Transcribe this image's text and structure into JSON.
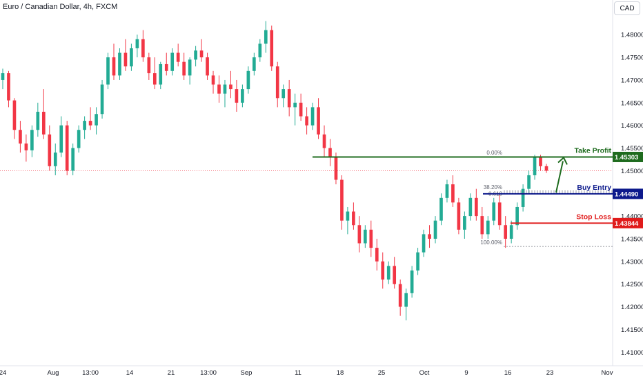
{
  "header": {
    "title": "Euro / Canadian Dollar, 4h, FXCM",
    "currency": "CAD"
  },
  "chart_data": {
    "type": "candlestick",
    "y_ticks": [
      "1.48000",
      "1.47500",
      "1.47000",
      "1.46500",
      "1.46000",
      "1.45500",
      "1.45000",
      "1.44500",
      "1.44000",
      "1.43500",
      "1.43000",
      "1.42500",
      "1.42000",
      "1.41500",
      "1.41000"
    ],
    "y_tick_values": [
      1.48,
      1.475,
      1.47,
      1.465,
      1.46,
      1.455,
      1.45,
      1.445,
      1.44,
      1.435,
      1.43,
      1.425,
      1.42,
      1.415,
      1.41
    ],
    "ylim": [
      1.4073,
      1.4846
    ],
    "x_ticks": [
      "24",
      "Aug",
      "13:00",
      "14",
      "21",
      "13:00",
      "Sep",
      "11",
      "18",
      "25",
      "Oct",
      "9",
      "16",
      "23",
      "Nov"
    ],
    "up_color": "#22ab94",
    "down_color": "#f23645",
    "close_price": 1.45,
    "levels": [
      {
        "label": "Take Profit",
        "price": 1.45303,
        "price_label": "1.45303",
        "color": "#1e6b1e"
      },
      {
        "label": "Buy Entry",
        "price": 1.4449,
        "price_label": "1.44490",
        "color": "#0d1a8c"
      },
      {
        "label": "Stop Loss",
        "price": 1.43844,
        "price_label": "1.43844",
        "color": "#e01b1b"
      }
    ],
    "fib": [
      {
        "label": "0.00%",
        "price": 1.4531
      },
      {
        "label": "38.20%",
        "price": 1.4455
      },
      {
        "label": "0.618",
        "price": 1.4451
      },
      {
        "label": "100.00%",
        "price": 1.4333
      }
    ],
    "candles": [
      [
        1.47,
        1.4725,
        1.468,
        1.4715
      ],
      [
        1.4715,
        1.472,
        1.464,
        1.4655
      ],
      [
        1.4655,
        1.466,
        1.457,
        1.459
      ],
      [
        1.459,
        1.461,
        1.454,
        1.456
      ],
      [
        1.456,
        1.458,
        1.452,
        1.4545
      ],
      [
        1.4545,
        1.46,
        1.453,
        1.459
      ],
      [
        1.459,
        1.465,
        1.4575,
        1.463
      ],
      [
        1.463,
        1.468,
        1.457,
        1.458
      ],
      [
        1.458,
        1.46,
        1.45,
        1.451
      ],
      [
        1.451,
        1.456,
        1.449,
        1.454
      ],
      [
        1.454,
        1.462,
        1.453,
        1.46
      ],
      [
        1.46,
        1.461,
        1.449,
        1.45
      ],
      [
        1.45,
        1.456,
        1.449,
        1.455
      ],
      [
        1.455,
        1.46,
        1.454,
        1.459
      ],
      [
        1.459,
        1.462,
        1.457,
        1.461
      ],
      [
        1.461,
        1.464,
        1.459,
        1.46
      ],
      [
        1.46,
        1.464,
        1.458,
        1.4625
      ],
      [
        1.4625,
        1.47,
        1.4615,
        1.469
      ],
      [
        1.469,
        1.476,
        1.468,
        1.475
      ],
      [
        1.475,
        1.478,
        1.47,
        1.471
      ],
      [
        1.471,
        1.477,
        1.47,
        1.476
      ],
      [
        1.476,
        1.479,
        1.472,
        1.473
      ],
      [
        1.473,
        1.478,
        1.472,
        1.477
      ],
      [
        1.477,
        1.48,
        1.475,
        1.479
      ],
      [
        1.479,
        1.481,
        1.474,
        1.475
      ],
      [
        1.475,
        1.476,
        1.47,
        1.4715
      ],
      [
        1.4715,
        1.475,
        1.468,
        1.469
      ],
      [
        1.469,
        1.474,
        1.468,
        1.4735
      ],
      [
        1.4735,
        1.476,
        1.471,
        1.472
      ],
      [
        1.472,
        1.477,
        1.471,
        1.476
      ],
      [
        1.476,
        1.478,
        1.473,
        1.474
      ],
      [
        1.474,
        1.476,
        1.47,
        1.471
      ],
      [
        1.471,
        1.475,
        1.469,
        1.4745
      ],
      [
        1.4745,
        1.4775,
        1.473,
        1.4765
      ],
      [
        1.4765,
        1.479,
        1.474,
        1.475
      ],
      [
        1.475,
        1.476,
        1.47,
        1.471
      ],
      [
        1.471,
        1.472,
        1.467,
        1.469
      ],
      [
        1.469,
        1.471,
        1.465,
        1.467
      ],
      [
        1.467,
        1.47,
        1.464,
        1.469
      ],
      [
        1.469,
        1.472,
        1.466,
        1.468
      ],
      [
        1.468,
        1.47,
        1.463,
        1.465
      ],
      [
        1.465,
        1.469,
        1.464,
        1.468
      ],
      [
        1.468,
        1.473,
        1.467,
        1.472
      ],
      [
        1.472,
        1.476,
        1.471,
        1.475
      ],
      [
        1.475,
        1.479,
        1.474,
        1.478
      ],
      [
        1.478,
        1.483,
        1.476,
        1.481
      ],
      [
        1.481,
        1.482,
        1.472,
        1.473
      ],
      [
        1.473,
        1.474,
        1.464,
        1.466
      ],
      [
        1.466,
        1.469,
        1.464,
        1.468
      ],
      [
        1.468,
        1.47,
        1.462,
        1.464
      ],
      [
        1.464,
        1.467,
        1.46,
        1.465
      ],
      [
        1.465,
        1.467,
        1.461,
        1.462
      ],
      [
        1.462,
        1.464,
        1.458,
        1.46
      ],
      [
        1.46,
        1.465,
        1.459,
        1.464
      ],
      [
        1.464,
        1.466,
        1.457,
        1.458
      ],
      [
        1.458,
        1.46,
        1.453,
        1.455
      ],
      [
        1.455,
        1.457,
        1.451,
        1.453
      ],
      [
        1.453,
        1.454,
        1.447,
        1.448
      ],
      [
        1.448,
        1.449,
        1.437,
        1.439
      ],
      [
        1.439,
        1.442,
        1.436,
        1.441
      ],
      [
        1.441,
        1.443,
        1.437,
        1.438
      ],
      [
        1.438,
        1.44,
        1.432,
        1.434
      ],
      [
        1.434,
        1.438,
        1.433,
        1.437
      ],
      [
        1.437,
        1.439,
        1.431,
        1.433
      ],
      [
        1.433,
        1.435,
        1.428,
        1.43
      ],
      [
        1.43,
        1.432,
        1.424,
        1.426
      ],
      [
        1.426,
        1.43,
        1.425,
        1.429
      ],
      [
        1.429,
        1.431,
        1.424,
        1.425
      ],
      [
        1.425,
        1.426,
        1.418,
        1.42
      ],
      [
        1.42,
        1.424,
        1.417,
        1.423
      ],
      [
        1.423,
        1.429,
        1.422,
        1.428
      ],
      [
        1.428,
        1.433,
        1.427,
        1.432
      ],
      [
        1.432,
        1.437,
        1.431,
        1.436
      ],
      [
        1.436,
        1.438,
        1.433,
        1.435
      ],
      [
        1.435,
        1.44,
        1.434,
        1.439
      ],
      [
        1.439,
        1.445,
        1.438,
        1.444
      ],
      [
        1.444,
        1.448,
        1.443,
        1.447
      ],
      [
        1.447,
        1.449,
        1.442,
        1.443
      ],
      [
        1.443,
        1.444,
        1.436,
        1.437
      ],
      [
        1.437,
        1.441,
        1.435,
        1.44
      ],
      [
        1.44,
        1.445,
        1.439,
        1.444
      ],
      [
        1.444,
        1.446,
        1.439,
        1.44
      ],
      [
        1.44,
        1.442,
        1.435,
        1.436
      ],
      [
        1.436,
        1.44,
        1.435,
        1.439
      ],
      [
        1.439,
        1.444,
        1.438,
        1.443
      ],
      [
        1.443,
        1.445,
        1.437,
        1.438
      ],
      [
        1.438,
        1.44,
        1.433,
        1.435
      ],
      [
        1.435,
        1.439,
        1.434,
        1.438
      ],
      [
        1.438,
        1.443,
        1.437,
        1.442
      ],
      [
        1.442,
        1.447,
        1.441,
        1.446
      ],
      [
        1.446,
        1.45,
        1.445,
        1.449
      ],
      [
        1.449,
        1.4535,
        1.448,
        1.453
      ],
      [
        1.453,
        1.4535,
        1.45,
        1.451
      ],
      [
        1.451,
        1.4515,
        1.4495,
        1.45
      ]
    ]
  }
}
